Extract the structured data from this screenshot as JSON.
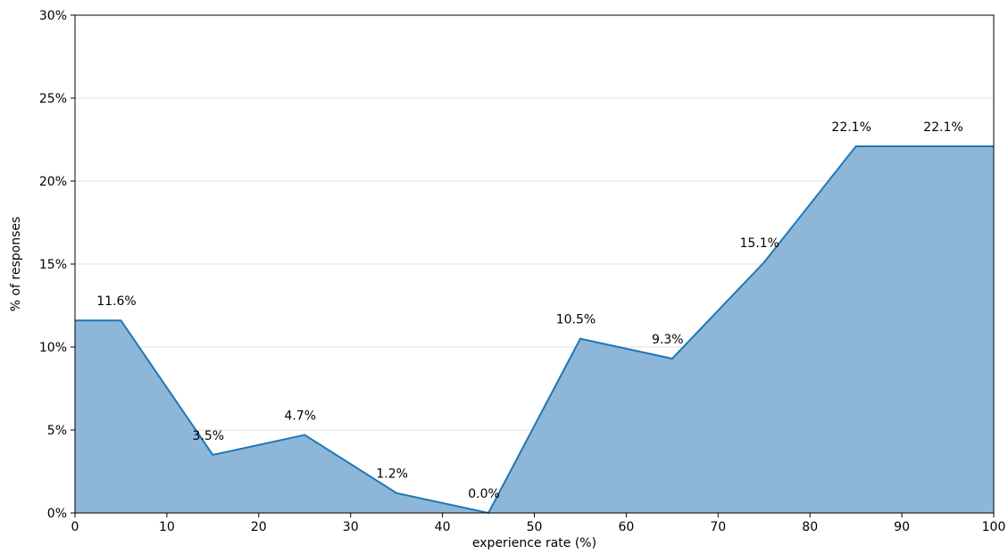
{
  "chart_data": {
    "type": "area",
    "xlabel": "experience rate (%)",
    "ylabel": "% of responses",
    "xlim": [
      0,
      100
    ],
    "ylim": [
      0,
      30
    ],
    "x_ticks": [
      0,
      10,
      20,
      30,
      40,
      50,
      60,
      70,
      80,
      90,
      100
    ],
    "x_tick_labels": [
      "0",
      "10",
      "20",
      "30",
      "40",
      "50",
      "60",
      "70",
      "80",
      "90",
      "100"
    ],
    "y_ticks": [
      0,
      5,
      10,
      15,
      20,
      25,
      30
    ],
    "y_tick_labels": [
      "0%",
      "5%",
      "10%",
      "15%",
      "20%",
      "25%",
      "30%"
    ],
    "grid": "horizontal",
    "x": [
      0,
      5,
      15,
      25,
      35,
      45,
      55,
      65,
      75,
      85,
      100
    ],
    "values": [
      11.6,
      11.6,
      3.5,
      4.7,
      1.2,
      0.0,
      10.5,
      9.3,
      15.1,
      22.1,
      22.1
    ],
    "data_labels": [
      {
        "x": 5,
        "y": 11.6,
        "text": "11.6%"
      },
      {
        "x": 15,
        "y": 3.5,
        "text": "3.5%"
      },
      {
        "x": 25,
        "y": 4.7,
        "text": "4.7%"
      },
      {
        "x": 35,
        "y": 1.2,
        "text": "1.2%"
      },
      {
        "x": 45,
        "y": 0.0,
        "text": "0.0%"
      },
      {
        "x": 55,
        "y": 10.5,
        "text": "10.5%"
      },
      {
        "x": 65,
        "y": 9.3,
        "text": "9.3%"
      },
      {
        "x": 75,
        "y": 15.1,
        "text": "15.1%"
      },
      {
        "x": 85,
        "y": 22.1,
        "text": "22.1%"
      },
      {
        "x": 95,
        "y": 22.1,
        "text": "22.1%"
      }
    ],
    "colors": {
      "line": "#1f77b4",
      "fill": "#8db6d9",
      "grid": "#e0e0e0"
    }
  }
}
